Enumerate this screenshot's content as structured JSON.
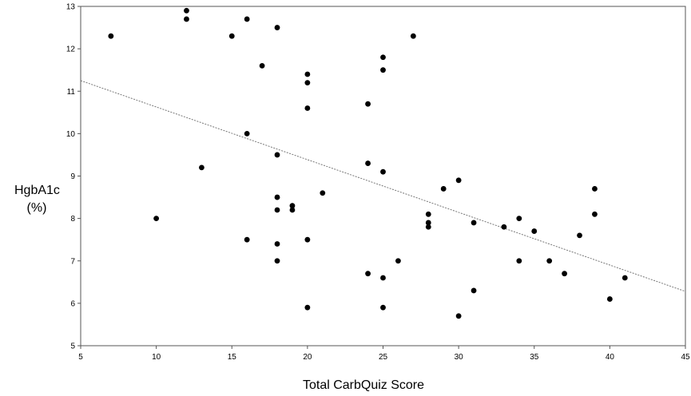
{
  "chart_data": {
    "type": "scatter",
    "title": "",
    "xlabel": "Total CarbQuiz Score",
    "ylabel_lines": [
      "HgbA1c",
      "(%)"
    ],
    "xlim": [
      5,
      45
    ],
    "ylim": [
      5,
      13
    ],
    "xticks": [
      5,
      10,
      15,
      20,
      25,
      30,
      35,
      40,
      45
    ],
    "yticks": [
      5,
      6,
      7,
      8,
      9,
      10,
      11,
      12,
      13
    ],
    "grid": false,
    "trendline": {
      "style": "dotted",
      "x": [
        5,
        45
      ],
      "y": [
        11.25,
        6.28
      ]
    },
    "points": [
      [
        7,
        12.3
      ],
      [
        12,
        12.9
      ],
      [
        12,
        12.7
      ],
      [
        15,
        12.3
      ],
      [
        16,
        12.7
      ],
      [
        18,
        12.5
      ],
      [
        17,
        11.6
      ],
      [
        20,
        11.4
      ],
      [
        20,
        11.2
      ],
      [
        20,
        10.6
      ],
      [
        25,
        11.8
      ],
      [
        25,
        11.5
      ],
      [
        27,
        12.3
      ],
      [
        24,
        10.7
      ],
      [
        16,
        10.0
      ],
      [
        18,
        9.5
      ],
      [
        13,
        9.2
      ],
      [
        24,
        9.3
      ],
      [
        25,
        9.1
      ],
      [
        10,
        8.0
      ],
      [
        18,
        8.5
      ],
      [
        18,
        8.2
      ],
      [
        19,
        8.3
      ],
      [
        19,
        8.2
      ],
      [
        21,
        8.6
      ],
      [
        29,
        8.7
      ],
      [
        30,
        8.9
      ],
      [
        28,
        8.1
      ],
      [
        28,
        7.9
      ],
      [
        28,
        7.8
      ],
      [
        31,
        7.9
      ],
      [
        33,
        7.8
      ],
      [
        34,
        8.0
      ],
      [
        35,
        7.7
      ],
      [
        38,
        7.6
      ],
      [
        39,
        8.7
      ],
      [
        39,
        8.1
      ],
      [
        16,
        7.5
      ],
      [
        20,
        7.5
      ],
      [
        18,
        7.4
      ],
      [
        18,
        7.0
      ],
      [
        24,
        6.7
      ],
      [
        25,
        6.6
      ],
      [
        26,
        7.0
      ],
      [
        34,
        7.0
      ],
      [
        36,
        7.0
      ],
      [
        37,
        6.7
      ],
      [
        41,
        6.6
      ],
      [
        31,
        6.3
      ],
      [
        40,
        6.1
      ],
      [
        20,
        5.9
      ],
      [
        25,
        5.9
      ],
      [
        30,
        5.7
      ]
    ]
  }
}
